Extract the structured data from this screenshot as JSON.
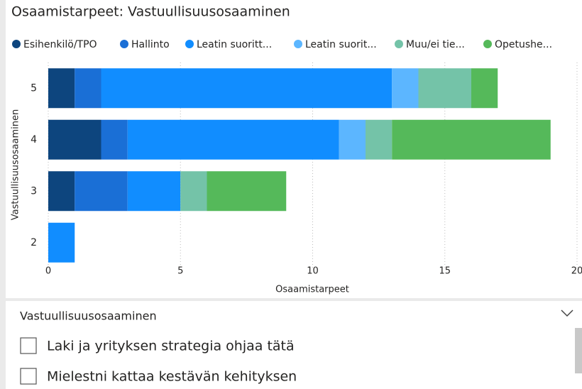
{
  "chart_data": {
    "type": "bar",
    "orientation": "horizontal",
    "stacked": true,
    "title": "Osaamistarpeet: Vastuullisuusosaaminen",
    "x_label": "Osaamistarpeet",
    "y_label": "Vastuullisuusosaaminen",
    "categories": [
      "5",
      "4",
      "3",
      "2"
    ],
    "series": [
      {
        "name": "Esihenkilö/TPO",
        "color": "#0d457e",
        "values": [
          1,
          2,
          1,
          0
        ]
      },
      {
        "name": "Hallinto",
        "color": "#1a6fd6",
        "values": [
          1,
          1,
          2,
          0
        ]
      },
      {
        "name": "Leatin suoritt...",
        "color": "#118dff",
        "values": [
          11,
          8,
          2,
          1
        ]
      },
      {
        "name": "Leatin suorit...",
        "color": "#5cb6ff",
        "values": [
          1,
          1,
          0,
          0
        ]
      },
      {
        "name": "Muu/ei tie...",
        "color": "#74c3a8",
        "values": [
          2,
          1,
          1,
          0
        ]
      },
      {
        "name": "Opetushe...",
        "color": "#55b95a",
        "values": [
          1,
          6,
          3,
          0
        ]
      }
    ],
    "xlim": [
      0,
      20
    ],
    "xticks": [
      0,
      5,
      10,
      15,
      20
    ],
    "grid": true,
    "legend": "top"
  },
  "slicer": {
    "title": "Vastuullisuusosaaminen",
    "items": [
      "Laki ja yrityksen strategia ohjaa tätä",
      "Mielestni kattaa kestävän kehityksen"
    ]
  }
}
